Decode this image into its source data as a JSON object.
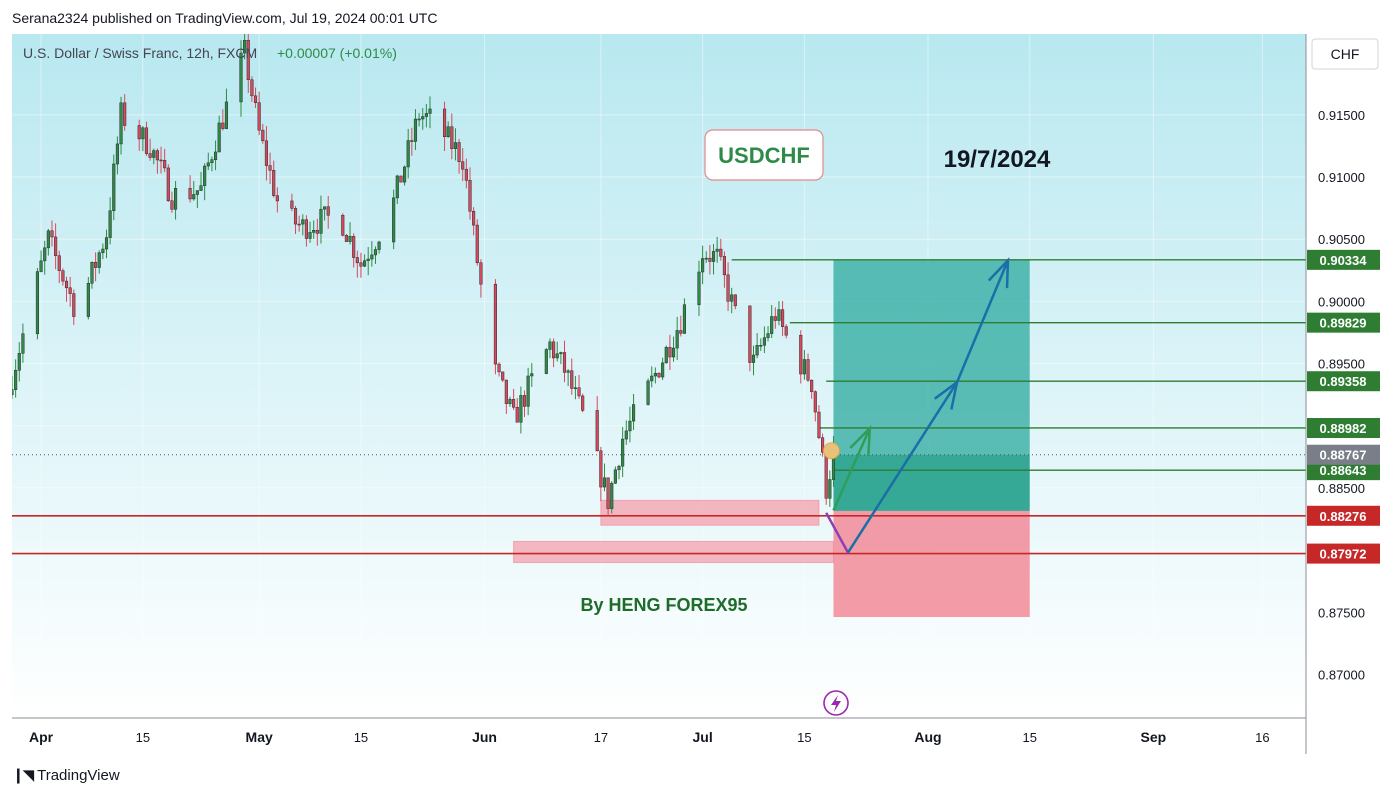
{
  "header": {
    "published_line": "Serana2324 published on TradingView.com, Jul 19, 2024 00:01 UTC"
  },
  "footer": {
    "brand": "TradingView",
    "logo_icon": "tradingview-logo-icon"
  },
  "colors": {
    "bull": "#2e8b47",
    "bear": "#d9485c",
    "target": "#2e7d32",
    "stop": "#c62828",
    "long_zone": "#26a69a",
    "short_zone": "#f28b99",
    "arrow": "#1a6fa8"
  },
  "chart_data": {
    "type": "candlestick",
    "symbol_line": "U.S. Dollar / Swiss Franc, 12h, FXCM",
    "change": "+0.00007 (+0.01%)",
    "currency_button": "CHF",
    "title_box": "USDCHF",
    "date_text": "19/7/2024",
    "author_text": "By HENG FOREX95",
    "y_range": [
      0.8665,
      0.9215
    ],
    "x_range": [
      "2024-03-28",
      "2024-09-22"
    ],
    "y_ticks": [
      0.915,
      0.91,
      0.905,
      0.9,
      0.895,
      0.89,
      0.885,
      0.88,
      0.875,
      0.87
    ],
    "y_tick_labels": [
      "0.91500",
      "0.91000",
      "0.90500",
      "0.90000",
      "0.89500",
      "0.89000",
      "0.88500",
      "0.88000",
      "0.87500",
      "0.87000"
    ],
    "x_ticks": [
      {
        "label": "Apr",
        "date": "2024-04-01"
      },
      {
        "label": "15",
        "date": "2024-04-15"
      },
      {
        "label": "May",
        "date": "2024-05-01"
      },
      {
        "label": "15",
        "date": "2024-05-15"
      },
      {
        "label": "Jun",
        "date": "2024-06-01"
      },
      {
        "label": "17",
        "date": "2024-06-17"
      },
      {
        "label": "Jul",
        "date": "2024-07-01"
      },
      {
        "label": "15",
        "date": "2024-07-15"
      },
      {
        "label": "Aug",
        "date": "2024-08-01"
      },
      {
        "label": "15",
        "date": "2024-08-15"
      },
      {
        "label": "Sep",
        "date": "2024-09-01"
      },
      {
        "label": "16",
        "date": "2024-09-16"
      }
    ],
    "last_price": 0.88767,
    "last_price_label": "0.88767",
    "candle_anchors": [
      [
        "2024-03-28",
        0.894
      ],
      [
        "2024-04-02",
        0.905
      ],
      [
        "2024-04-06",
        0.899
      ],
      [
        "2024-04-10",
        0.9055
      ],
      [
        "2024-04-12",
        0.915
      ],
      [
        "2024-04-16",
        0.9125
      ],
      [
        "2024-04-19",
        0.9085
      ],
      [
        "2024-04-23",
        0.909
      ],
      [
        "2024-04-25",
        0.913
      ],
      [
        "2024-04-29",
        0.92
      ],
      [
        "2024-05-01",
        0.9135
      ],
      [
        "2024-05-04",
        0.907
      ],
      [
        "2024-05-07",
        0.906
      ],
      [
        "2024-05-12",
        0.907
      ],
      [
        "2024-05-15",
        0.903
      ],
      [
        "2024-05-19",
        0.907
      ],
      [
        "2024-05-23",
        0.915
      ],
      [
        "2024-05-25",
        0.9145
      ],
      [
        "2024-05-29",
        0.9115
      ],
      [
        "2024-06-02",
        0.895
      ],
      [
        "2024-06-05",
        0.8905
      ],
      [
        "2024-06-07",
        0.893
      ],
      [
        "2024-06-10",
        0.8965
      ],
      [
        "2024-06-12",
        0.8945
      ],
      [
        "2024-06-15",
        0.89
      ],
      [
        "2024-06-18",
        0.884
      ],
      [
        "2024-06-20",
        0.889
      ],
      [
        "2024-06-24",
        0.8935
      ],
      [
        "2024-06-28",
        0.8985
      ],
      [
        "2024-07-01",
        0.904
      ],
      [
        "2024-07-03",
        0.9035
      ],
      [
        "2024-07-06",
        0.898
      ],
      [
        "2024-07-08",
        0.895
      ],
      [
        "2024-07-11",
        0.899
      ],
      [
        "2024-07-13",
        0.8965
      ],
      [
        "2024-07-16",
        0.8935
      ],
      [
        "2024-07-18",
        0.885
      ],
      [
        "2024-07-19",
        0.88767
      ]
    ],
    "levels": [
      {
        "price": 0.90334,
        "label": "0.90334",
        "kind": "target",
        "from": "2024-07-05"
      },
      {
        "price": 0.89829,
        "label": "0.89829",
        "kind": "target",
        "from": "2024-07-13"
      },
      {
        "price": 0.89358,
        "label": "0.89358",
        "kind": "target",
        "from": "2024-07-18"
      },
      {
        "price": 0.88982,
        "label": "0.88982",
        "kind": "target",
        "from": "2024-07-17"
      },
      {
        "price": 0.88643,
        "label": "0.88643",
        "kind": "target",
        "from": "2024-07-19"
      },
      {
        "price": 0.88276,
        "label": "0.88276",
        "kind": "stop",
        "from": "2024-03-28"
      },
      {
        "price": 0.87972,
        "label": "0.87972",
        "kind": "stop",
        "from": "2024-03-28"
      }
    ],
    "support_zones": [
      {
        "from": "2024-06-17",
        "to": "2024-07-17",
        "top": 0.884,
        "bottom": 0.882
      },
      {
        "from": "2024-06-05",
        "to": "2024-07-19",
        "top": 0.8807,
        "bottom": 0.879
      }
    ],
    "position": {
      "from": "2024-07-19",
      "to": "2024-08-15",
      "target": 0.90334,
      "entry": 0.88767,
      "entry_low": 0.88315,
      "stop": 0.87462
    },
    "projection_path": [
      [
        "2024-07-18",
        0.883
      ],
      [
        "2024-07-21",
        0.8798
      ],
      [
        "2024-08-05",
        0.8935
      ],
      [
        "2024-08-12",
        0.9033
      ]
    ],
    "small_arrow": [
      [
        "2024-07-19",
        0.8832
      ],
      [
        "2024-07-24",
        0.8898
      ]
    ]
  }
}
